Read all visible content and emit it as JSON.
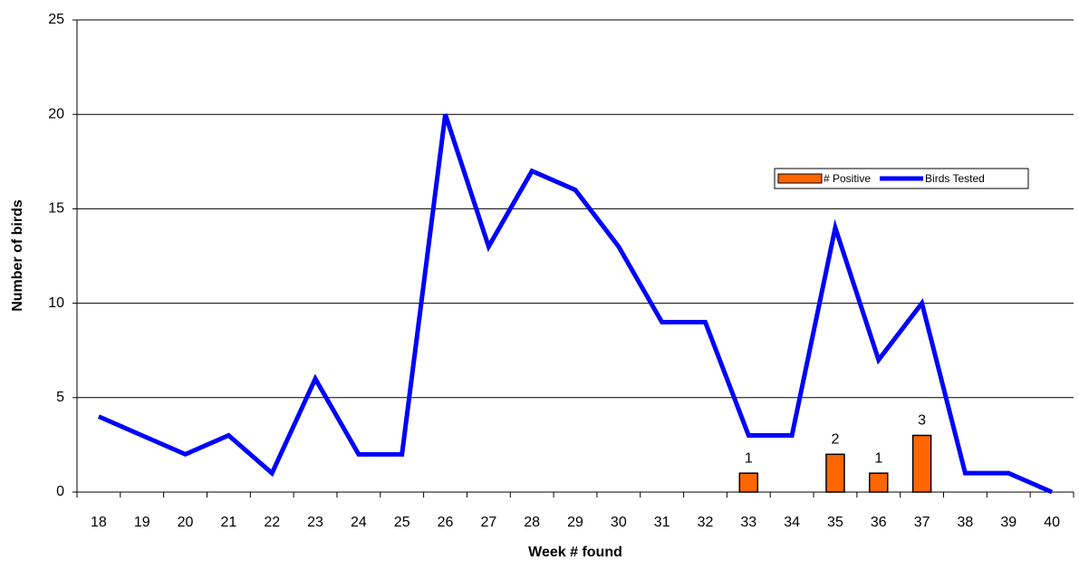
{
  "chart_data": {
    "type": "combo",
    "x_label": "Week # found",
    "y_label": "Number of birds",
    "categories": [
      "18",
      "19",
      "20",
      "21",
      "22",
      "23",
      "24",
      "25",
      "26",
      "27",
      "28",
      "29",
      "30",
      "31",
      "32",
      "33",
      "34",
      "35",
      "36",
      "37",
      "38",
      "39",
      "40"
    ],
    "series": [
      {
        "name": "# Positive",
        "type": "bar",
        "color": "#ff6600",
        "values": [
          null,
          null,
          null,
          null,
          null,
          null,
          null,
          null,
          null,
          null,
          null,
          null,
          null,
          null,
          null,
          1,
          null,
          2,
          1,
          3,
          null,
          null,
          null
        ]
      },
      {
        "name": "Birds Tested",
        "type": "line",
        "color": "#0000ff",
        "values": [
          4,
          3,
          2,
          3,
          1,
          6,
          2,
          2,
          20,
          13,
          17,
          16,
          13,
          9,
          9,
          3,
          3,
          14,
          7,
          10,
          1,
          1,
          0
        ]
      }
    ],
    "ylim": [
      0,
      25
    ],
    "yticks": [
      0,
      5,
      10,
      15,
      20,
      25
    ],
    "grid": true,
    "legend": "upper-right"
  }
}
